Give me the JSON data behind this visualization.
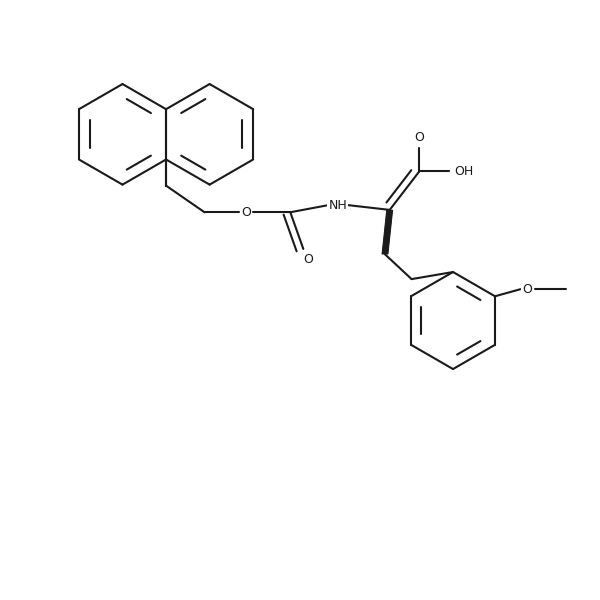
{
  "bg": "#ffffff",
  "lc": "#1a1a1a",
  "lw": 1.5,
  "fs": 9,
  "fig_w": 6.0,
  "fig_h": 6.0,
  "xlim": [
    0,
    10
  ],
  "ylim": [
    0,
    10
  ]
}
